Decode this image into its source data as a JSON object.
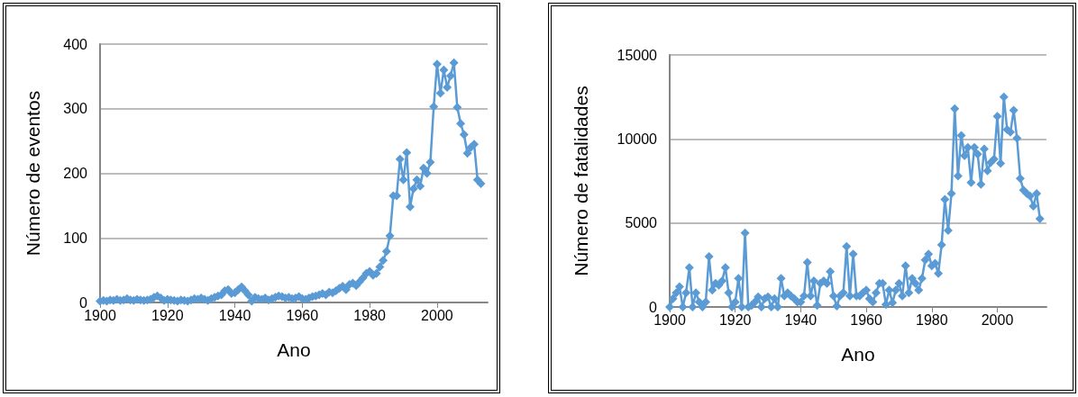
{
  "chart_data": [
    {
      "type": "line",
      "xlabel": "Ano",
      "ylabel": "Número de eventos",
      "x": [
        1900,
        1901,
        1902,
        1903,
        1904,
        1905,
        1906,
        1907,
        1908,
        1909,
        1910,
        1911,
        1912,
        1913,
        1914,
        1915,
        1916,
        1917,
        1918,
        1919,
        1920,
        1921,
        1922,
        1923,
        1924,
        1925,
        1926,
        1927,
        1928,
        1929,
        1930,
        1931,
        1932,
        1933,
        1934,
        1935,
        1936,
        1937,
        1938,
        1939,
        1940,
        1941,
        1942,
        1943,
        1944,
        1945,
        1946,
        1947,
        1948,
        1949,
        1950,
        1951,
        1952,
        1953,
        1954,
        1955,
        1956,
        1957,
        1958,
        1959,
        1960,
        1961,
        1962,
        1963,
        1964,
        1965,
        1966,
        1967,
        1968,
        1969,
        1970,
        1971,
        1972,
        1973,
        1974,
        1975,
        1976,
        1977,
        1978,
        1979,
        1980,
        1981,
        1982,
        1983,
        1984,
        1985,
        1986,
        1987,
        1988,
        1989,
        1990,
        1991,
        1992,
        1993,
        1994,
        1995,
        1996,
        1997,
        1998,
        1999,
        2000,
        2001,
        2002,
        2003,
        2004,
        2005,
        2006,
        2007,
        2008,
        2009,
        2010,
        2011,
        2012,
        2013
      ],
      "series": [
        {
          "color": "#5b9bd5",
          "values": [
            2,
            3,
            2,
            4,
            3,
            5,
            3,
            4,
            6,
            4,
            3,
            5,
            4,
            3,
            4,
            5,
            8,
            10,
            7,
            3,
            5,
            4,
            3,
            2,
            4,
            3,
            2,
            4,
            6,
            5,
            7,
            5,
            3,
            6,
            8,
            10,
            12,
            18,
            20,
            14,
            15,
            20,
            24,
            18,
            12,
            2,
            8,
            6,
            5,
            7,
            4,
            6,
            8,
            10,
            9,
            7,
            8,
            6,
            7,
            9,
            6,
            5,
            7,
            9,
            10,
            12,
            14,
            12,
            16,
            15,
            18,
            22,
            25,
            20,
            28,
            30,
            26,
            32,
            38,
            45,
            48,
            42,
            45,
            55,
            65,
            79,
            103,
            165,
            165,
            222,
            190,
            232,
            148,
            176,
            190,
            180,
            208,
            200,
            217,
            303,
            369,
            324,
            360,
            333,
            351,
            371,
            302,
            277,
            260,
            231,
            240,
            245,
            190,
            184
          ]
        }
      ],
      "xlim": [
        1900,
        2015
      ],
      "xticks": [
        1900,
        1920,
        1940,
        1960,
        1980,
        2000
      ],
      "ylim": [
        0,
        400
      ],
      "yticks": [
        0,
        100,
        200,
        300,
        400
      ],
      "grid": "y",
      "marker": "diamond",
      "line_style": "solid"
    },
    {
      "type": "line",
      "xlabel": "Ano",
      "ylabel": "Número de fatalidades",
      "x": [
        1900,
        1901,
        1902,
        1903,
        1904,
        1905,
        1906,
        1907,
        1908,
        1909,
        1910,
        1911,
        1912,
        1913,
        1914,
        1915,
        1916,
        1917,
        1918,
        1919,
        1920,
        1921,
        1922,
        1923,
        1924,
        1925,
        1926,
        1927,
        1928,
        1929,
        1930,
        1931,
        1932,
        1933,
        1934,
        1935,
        1936,
        1937,
        1938,
        1939,
        1940,
        1941,
        1942,
        1943,
        1944,
        1945,
        1946,
        1947,
        1948,
        1949,
        1950,
        1951,
        1952,
        1953,
        1954,
        1955,
        1956,
        1957,
        1958,
        1959,
        1960,
        1961,
        1962,
        1963,
        1964,
        1965,
        1966,
        1967,
        1968,
        1969,
        1970,
        1971,
        1972,
        1973,
        1974,
        1975,
        1976,
        1977,
        1978,
        1979,
        1980,
        1981,
        1982,
        1983,
        1984,
        1985,
        1986,
        1987,
        1988,
        1989,
        1990,
        1991,
        1992,
        1993,
        1994,
        1995,
        1996,
        1997,
        1998,
        1999,
        2000,
        2001,
        2002,
        2003,
        2004,
        2005,
        2006,
        2007,
        2008,
        2009,
        2010,
        2011,
        2012,
        2013
      ],
      "series": [
        {
          "color": "#5b9bd5",
          "values": [
            0,
            500,
            850,
            1200,
            0,
            850,
            2350,
            0,
            850,
            300,
            0,
            300,
            3000,
            1000,
            1400,
            1300,
            1550,
            2350,
            850,
            0,
            300,
            1700,
            0,
            4400,
            0,
            100,
            300,
            600,
            0,
            500,
            600,
            0,
            500,
            0,
            1700,
            650,
            850,
            650,
            500,
            300,
            300,
            650,
            2650,
            650,
            1550,
            100,
            1400,
            1550,
            1400,
            2100,
            650,
            50,
            650,
            850,
            3600,
            650,
            3150,
            650,
            650,
            850,
            1000,
            500,
            300,
            850,
            1400,
            1400,
            150,
            1000,
            250,
            1000,
            1400,
            650,
            2450,
            850,
            1700,
            1400,
            1000,
            1700,
            2800,
            3150,
            2450,
            2600,
            2000,
            3700,
            6400,
            4550,
            6750,
            11800,
            7800,
            10200,
            9000,
            9500,
            7400,
            9500,
            9100,
            7300,
            9400,
            8100,
            8600,
            8800,
            11350,
            8550,
            12500,
            10550,
            10400,
            11700,
            10050,
            7650,
            6950,
            6750,
            6600,
            6000,
            6750,
            5250
          ]
        }
      ],
      "xlim": [
        1900,
        2015
      ],
      "xticks": [
        1900,
        1920,
        1940,
        1960,
        1980,
        2000
      ],
      "ylim": [
        0,
        15000
      ],
      "yticks": [
        0,
        5000,
        10000,
        15000
      ],
      "grid": "y",
      "marker": "diamond",
      "line_style": "solid"
    }
  ]
}
